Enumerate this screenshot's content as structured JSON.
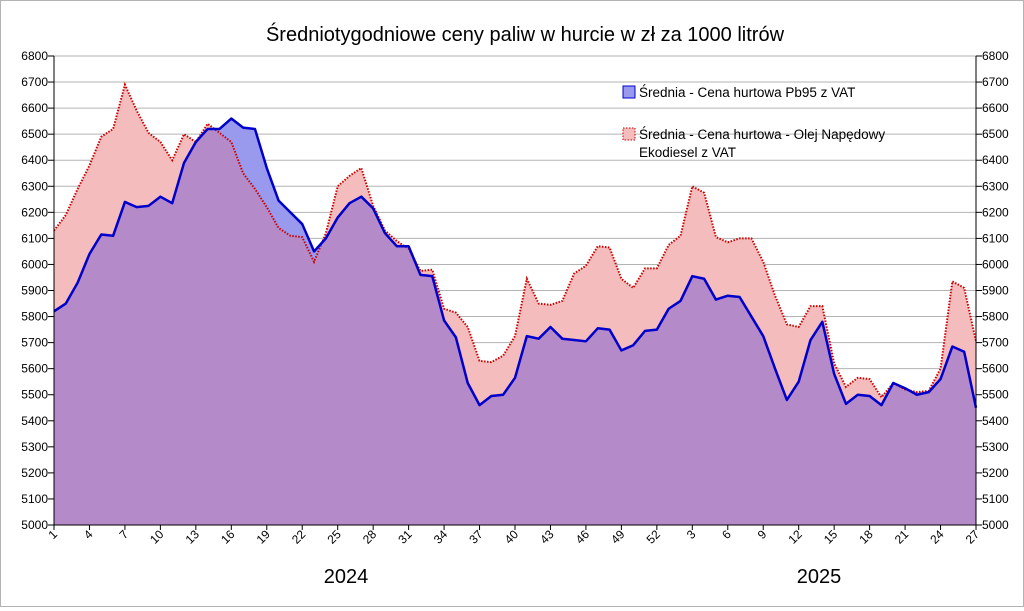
{
  "chart_data": {
    "type": "area",
    "title": "Średniotygodniowe ceny paliw w hurcie w zł za 1000 litrów",
    "ylim": [
      5000,
      6800
    ],
    "y_ticks": [
      5000,
      5100,
      5200,
      5300,
      5400,
      5500,
      5600,
      5700,
      5800,
      5900,
      6000,
      6100,
      6200,
      6300,
      6400,
      6500,
      6600,
      6700,
      6800
    ],
    "x_tick_labels": [
      "1",
      "4",
      "7",
      "10",
      "13",
      "16",
      "19",
      "22",
      "25",
      "28",
      "31",
      "34",
      "37",
      "40",
      "43",
      "46",
      "49",
      "52",
      "3",
      "6",
      "9",
      "12",
      "15",
      "18",
      "21",
      "24",
      "27"
    ],
    "years": [
      "2024",
      "2025"
    ],
    "grid": true,
    "legend_position": "top-right",
    "colors": {
      "pb95_line": "#0000cc",
      "pb95_fill": "#9999ee",
      "on_line": "#cc0000",
      "on_fill": "#f4bcbc",
      "overlap": "#b48ac8",
      "grid": "#b3b3b3"
    },
    "series": [
      {
        "name": "Średnia - Cena hurtowa Pb95 z VAT",
        "name_lines": [
          "Średnia - Cena hurtowa Pb95 z VAT"
        ],
        "values": [
          5820,
          5850,
          5930,
          6040,
          6115,
          6110,
          6240,
          6220,
          6225,
          6260,
          6235,
          6390,
          6470,
          6520,
          6520,
          6560,
          6525,
          6520,
          6370,
          6245,
          6200,
          6155,
          6050,
          6100,
          6180,
          6235,
          6260,
          6215,
          6120,
          6070,
          6070,
          5960,
          5955,
          5785,
          5720,
          5545,
          5460,
          5495,
          5500,
          5565,
          5725,
          5715,
          5760,
          5715,
          5710,
          5705,
          5755,
          5750,
          5670,
          5690,
          5745,
          5750,
          5830,
          5860,
          5955,
          5945,
          5865,
          5880,
          5875,
          5800,
          5725,
          5600,
          5480,
          5550,
          5710,
          5780,
          5580,
          5465,
          5500,
          5495,
          5460,
          5545,
          5525,
          5500,
          5510,
          5560,
          5685,
          5665,
          5450
        ]
      },
      {
        "name": "Średnia - Cena hurtowa - Olej Napędowy Ekodiesel z VAT",
        "name_lines": [
          "Średnia - Cena hurtowa - Olej Napędowy",
          "Ekodiesel z VAT"
        ],
        "values": [
          6130,
          6190,
          6290,
          6380,
          6490,
          6520,
          6690,
          6590,
          6505,
          6470,
          6400,
          6500,
          6470,
          6540,
          6505,
          6470,
          6350,
          6290,
          6220,
          6140,
          6110,
          6105,
          6010,
          6120,
          6300,
          6340,
          6370,
          6225,
          6130,
          6090,
          6060,
          5975,
          5980,
          5830,
          5815,
          5760,
          5630,
          5625,
          5650,
          5725,
          5945,
          5850,
          5845,
          5860,
          5965,
          5995,
          6070,
          6065,
          5945,
          5910,
          5985,
          5985,
          6075,
          6110,
          6300,
          6275,
          6105,
          6085,
          6100,
          6100,
          6010,
          5880,
          5770,
          5760,
          5840,
          5840,
          5620,
          5530,
          5565,
          5560,
          5490,
          5545,
          5520,
          5510,
          5515,
          5600,
          5935,
          5910,
          5705
        ]
      }
    ]
  }
}
